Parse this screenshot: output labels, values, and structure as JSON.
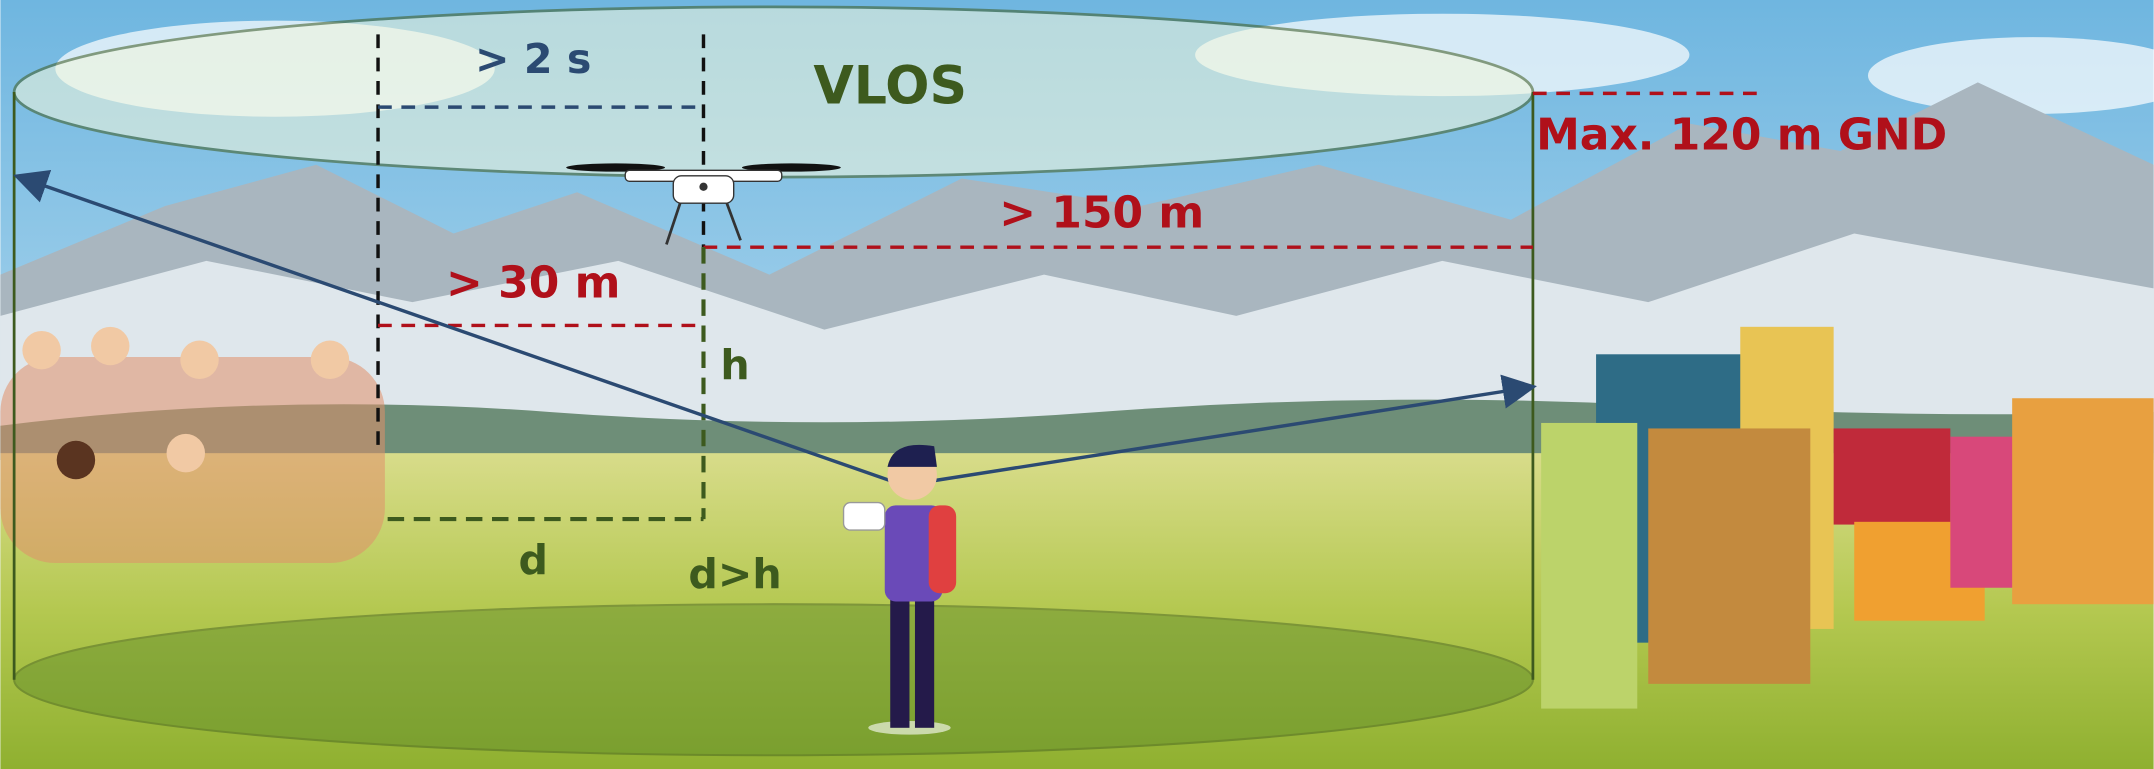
{
  "labels": {
    "time": "> 2 s",
    "vlos": "VLOS",
    "max_height": "Max. 120 m GND",
    "distance_150": "> 150 m",
    "distance_30": "> 30 m",
    "height": "h",
    "distance": "d",
    "rule": "d>h"
  }
}
